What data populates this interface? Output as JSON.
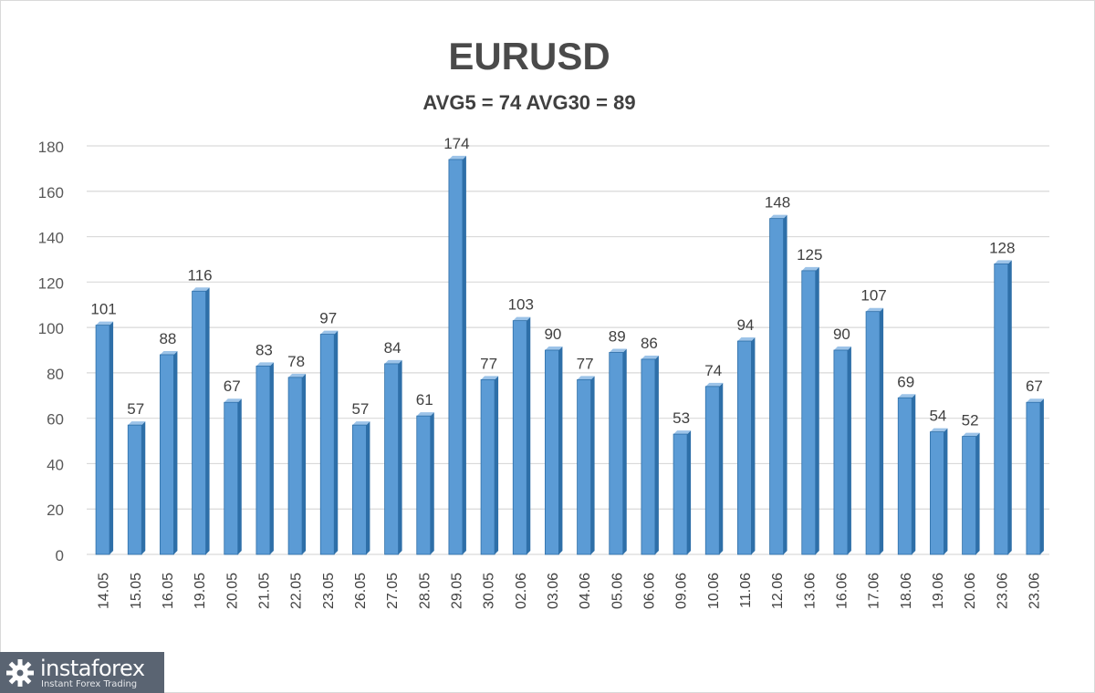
{
  "chart_data": {
    "type": "bar",
    "title": "EURUSD",
    "subtitle": "AVG5 = 74 AVG30 = 89",
    "categories": [
      "14.05",
      "15.05",
      "16.05",
      "19.05",
      "20.05",
      "21.05",
      "22.05",
      "23.05",
      "26.05",
      "27.05",
      "28.05",
      "29.05",
      "30.05",
      "02.06",
      "03.06",
      "04.06",
      "05.06",
      "06.06",
      "09.06",
      "10.06",
      "11.06",
      "12.06",
      "13.06",
      "16.06",
      "17.06",
      "18.06",
      "19.06",
      "20.06",
      "23.06",
      "23.06"
    ],
    "values": [
      101,
      57,
      88,
      116,
      67,
      83,
      78,
      97,
      57,
      84,
      61,
      174,
      77,
      103,
      90,
      77,
      89,
      86,
      53,
      74,
      94,
      148,
      125,
      90,
      107,
      69,
      54,
      52,
      128,
      67
    ],
    "ylim": [
      0,
      180
    ],
    "yticks": [
      0,
      20,
      40,
      60,
      80,
      100,
      120,
      140,
      160,
      180
    ],
    "grid": true,
    "data_labels": true,
    "bar_color": "#5b9bd5",
    "bar_edge_color": "#2e6fa8"
  },
  "logo": {
    "name": "instaforex",
    "tagline": "Instant Forex Trading"
  }
}
